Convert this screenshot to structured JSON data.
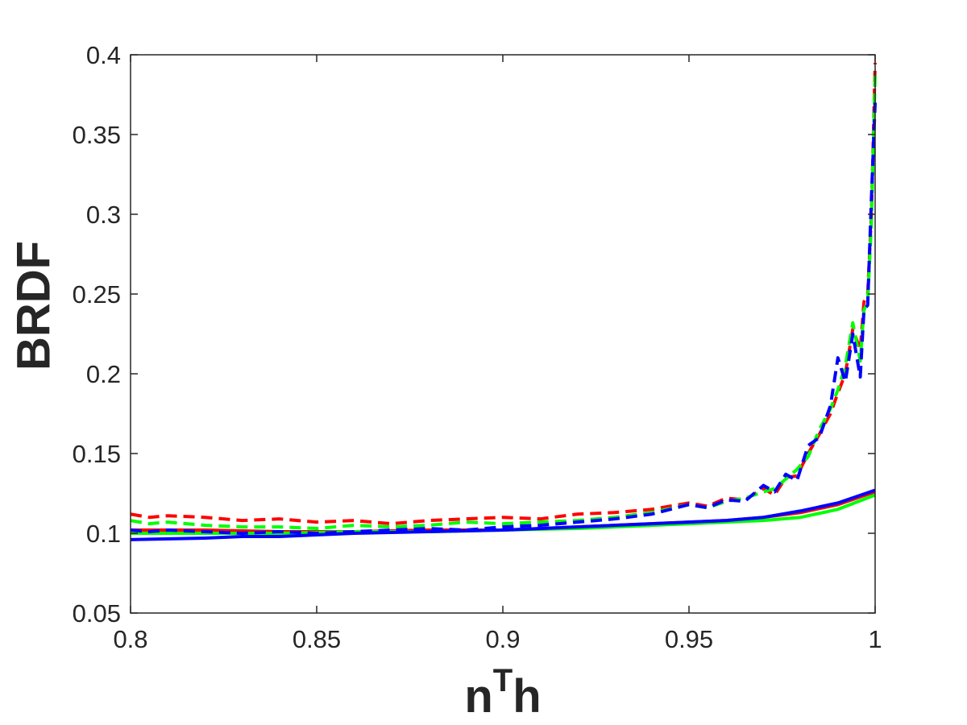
{
  "chart_data": {
    "type": "line",
    "title": "",
    "xlabel_main": "n",
    "xlabel_sup": "T",
    "xlabel_tail": "h",
    "ylabel": "BRDF",
    "xlim": [
      0.8,
      1.0
    ],
    "ylim": [
      0.05,
      0.4
    ],
    "grid": false,
    "legend": "none",
    "xticks": [
      0.8,
      0.85,
      0.9,
      0.95,
      1.0
    ],
    "xtick_labels": [
      "0.8",
      "0.85",
      "0.9",
      "0.95",
      "1"
    ],
    "yticks": [
      0.05,
      0.1,
      0.15,
      0.2,
      0.25,
      0.3,
      0.35,
      0.4
    ],
    "ytick_labels": [
      "0.05",
      "0.1",
      "0.15",
      "0.2",
      "0.25",
      "0.3",
      "0.35",
      "0.4"
    ],
    "series": [
      {
        "color": "#ff0000",
        "style": "solid",
        "x": [
          0.8,
          0.82,
          0.84,
          0.86,
          0.88,
          0.9,
          0.92,
          0.94,
          0.95,
          0.96,
          0.97,
          0.98,
          0.99,
          1.0
        ],
        "y": [
          0.102,
          0.102,
          0.101,
          0.101,
          0.102,
          0.102,
          0.104,
          0.106,
          0.107,
          0.108,
          0.11,
          0.113,
          0.118,
          0.126
        ]
      },
      {
        "color": "#00ff00",
        "style": "solid",
        "x": [
          0.8,
          0.82,
          0.84,
          0.86,
          0.88,
          0.9,
          0.92,
          0.94,
          0.95,
          0.96,
          0.97,
          0.98,
          0.99,
          1.0
        ],
        "y": [
          0.1,
          0.1,
          0.1,
          0.101,
          0.101,
          0.102,
          0.103,
          0.105,
          0.106,
          0.107,
          0.108,
          0.11,
          0.115,
          0.124
        ]
      },
      {
        "color": "#0000ff",
        "style": "solid",
        "x": [
          0.8,
          0.82,
          0.83,
          0.84,
          0.86,
          0.88,
          0.9,
          0.92,
          0.94,
          0.95,
          0.96,
          0.97,
          0.98,
          0.99,
          1.0
        ],
        "y": [
          0.096,
          0.097,
          0.098,
          0.098,
          0.1,
          0.101,
          0.102,
          0.104,
          0.106,
          0.107,
          0.108,
          0.11,
          0.114,
          0.119,
          0.127
        ]
      },
      {
        "color": "#ff0000",
        "style": "dashed",
        "x": [
          0.8,
          0.805,
          0.81,
          0.82,
          0.83,
          0.84,
          0.85,
          0.86,
          0.87,
          0.88,
          0.89,
          0.9,
          0.91,
          0.92,
          0.93,
          0.94,
          0.95,
          0.955,
          0.96,
          0.965,
          0.97,
          0.973,
          0.976,
          0.979,
          0.982,
          0.985,
          0.988,
          0.99,
          0.992,
          0.994,
          0.996,
          0.997,
          0.998,
          0.999,
          1.0
        ],
        "y": [
          0.112,
          0.11,
          0.111,
          0.11,
          0.108,
          0.109,
          0.107,
          0.108,
          0.106,
          0.108,
          0.109,
          0.11,
          0.109,
          0.112,
          0.113,
          0.115,
          0.119,
          0.117,
          0.122,
          0.121,
          0.128,
          0.124,
          0.135,
          0.136,
          0.15,
          0.162,
          0.175,
          0.188,
          0.2,
          0.228,
          0.215,
          0.245,
          0.25,
          0.3,
          0.395
        ]
      },
      {
        "color": "#00ff00",
        "style": "dashed",
        "x": [
          0.8,
          0.805,
          0.81,
          0.82,
          0.83,
          0.84,
          0.85,
          0.86,
          0.87,
          0.88,
          0.89,
          0.9,
          0.91,
          0.92,
          0.93,
          0.94,
          0.95,
          0.955,
          0.96,
          0.965,
          0.97,
          0.973,
          0.976,
          0.979,
          0.982,
          0.985,
          0.988,
          0.99,
          0.992,
          0.994,
          0.996,
          0.997,
          0.998,
          0.999,
          1.0
        ],
        "y": [
          0.108,
          0.106,
          0.107,
          0.105,
          0.104,
          0.104,
          0.103,
          0.105,
          0.104,
          0.105,
          0.107,
          0.106,
          0.107,
          0.108,
          0.11,
          0.113,
          0.118,
          0.116,
          0.12,
          0.122,
          0.126,
          0.128,
          0.134,
          0.14,
          0.148,
          0.165,
          0.178,
          0.19,
          0.205,
          0.232,
          0.208,
          0.24,
          0.245,
          0.295,
          0.388
        ]
      },
      {
        "color": "#0000ff",
        "style": "dashed",
        "x": [
          0.8,
          0.805,
          0.81,
          0.82,
          0.83,
          0.84,
          0.85,
          0.86,
          0.87,
          0.88,
          0.89,
          0.9,
          0.91,
          0.92,
          0.93,
          0.94,
          0.95,
          0.955,
          0.96,
          0.965,
          0.97,
          0.973,
          0.976,
          0.979,
          0.982,
          0.985,
          0.988,
          0.99,
          0.992,
          0.994,
          0.996,
          0.997,
          0.998,
          0.999,
          1.0
        ],
        "y": [
          0.102,
          0.101,
          0.102,
          0.101,
          0.1,
          0.101,
          0.1,
          0.101,
          0.102,
          0.103,
          0.102,
          0.104,
          0.105,
          0.107,
          0.109,
          0.112,
          0.118,
          0.116,
          0.121,
          0.12,
          0.13,
          0.126,
          0.137,
          0.133,
          0.155,
          0.16,
          0.18,
          0.21,
          0.195,
          0.225,
          0.198,
          0.24,
          0.243,
          0.31,
          0.37
        ]
      }
    ]
  }
}
